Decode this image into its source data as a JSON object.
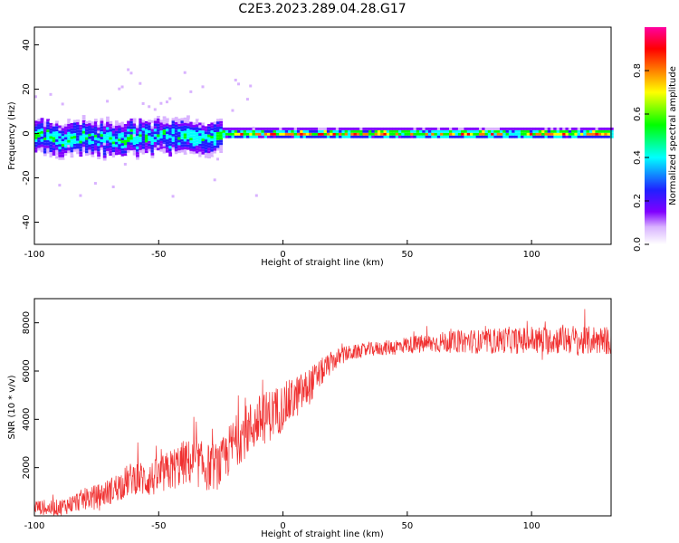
{
  "title": "C2E3.2023.289.04.28.G17",
  "colors": {
    "snr_line": "#f03030",
    "frame": "#000000",
    "colormap": [
      "#ffffff",
      "#d9b3ff",
      "#8000ff",
      "#2020ff",
      "#00ffff",
      "#00ff00",
      "#ffff00",
      "#ff8000",
      "#ff0000",
      "#ff00a0"
    ]
  },
  "chart_data": [
    {
      "type": "heatmap",
      "title": "",
      "xlabel": "Height of straight line (km)",
      "ylabel": "Frequency (Hz)",
      "xlim": [
        -100,
        132
      ],
      "ylim": [
        -50,
        48
      ],
      "xticks": [
        "-100",
        "-50",
        "0",
        "50",
        "100"
      ],
      "yticks": [
        "-40",
        "-20",
        "0",
        "20",
        "40"
      ],
      "colorbar": {
        "label": "Normalized spectral amplitude",
        "range": [
          0,
          1
        ],
        "ticks": [
          "0.0",
          "0.2",
          "0.4",
          "0.6",
          "0.8"
        ]
      },
      "bands": [
        {
          "x": [
            -100,
            -25
          ],
          "center_hz": -2,
          "width_hz": 10,
          "peak_amplitude": 0.6,
          "note": "diffuse band"
        },
        {
          "x": [
            -25,
            132
          ],
          "center_hz": 0,
          "width_hz": 3,
          "peak_amplitude": 0.9
        }
      ]
    },
    {
      "type": "line",
      "title": "",
      "xlabel": "Height of straight line (km)",
      "ylabel": "SNR (10 * v/v)",
      "xlim": [
        -100,
        132
      ],
      "ylim": [
        0,
        9000
      ],
      "xticks": [
        "-100",
        "-50",
        "0",
        "50",
        "100"
      ],
      "yticks": [
        "2000",
        "4000",
        "6000",
        "8000"
      ],
      "series": [
        {
          "x": [
            -100,
            -95,
            -90,
            -85,
            -80,
            -75,
            -70,
            -65,
            -60,
            -55,
            -50,
            -45,
            -40,
            -35,
            -30,
            -25,
            -20,
            -15,
            -10,
            -5,
            0,
            5,
            10,
            15,
            20,
            25,
            30,
            35,
            40,
            45,
            50,
            55,
            60,
            65,
            70,
            75,
            80,
            85,
            90,
            95,
            100,
            105,
            110,
            115,
            120,
            125,
            132
          ],
          "values": [
            400,
            300,
            350,
            500,
            700,
            800,
            1000,
            1300,
            1600,
            1500,
            1600,
            1900,
            2200,
            2200,
            2000,
            2100,
            3000,
            3500,
            3900,
            4200,
            4500,
            4900,
            5300,
            5900,
            6400,
            6700,
            6800,
            6900,
            6950,
            7000,
            7100,
            7100,
            7150,
            7200,
            7200,
            7250,
            7200,
            7250,
            7300,
            7250,
            7300,
            7250,
            7300,
            7350,
            7200,
            7300,
            7250
          ],
          "noise": [
            300,
            300,
            350,
            400,
            450,
            500,
            550,
            650,
            700,
            750,
            800,
            900,
            950,
            1000,
            1000,
            1000,
            1100,
            1100,
            1100,
            1100,
            1000,
            900,
            800,
            600,
            450,
            350,
            300,
            300,
            300,
            350,
            350,
            400,
            400,
            450,
            450,
            500,
            500,
            550,
            550,
            550,
            600,
            600,
            600,
            650,
            600,
            600,
            600
          ]
        }
      ]
    }
  ]
}
